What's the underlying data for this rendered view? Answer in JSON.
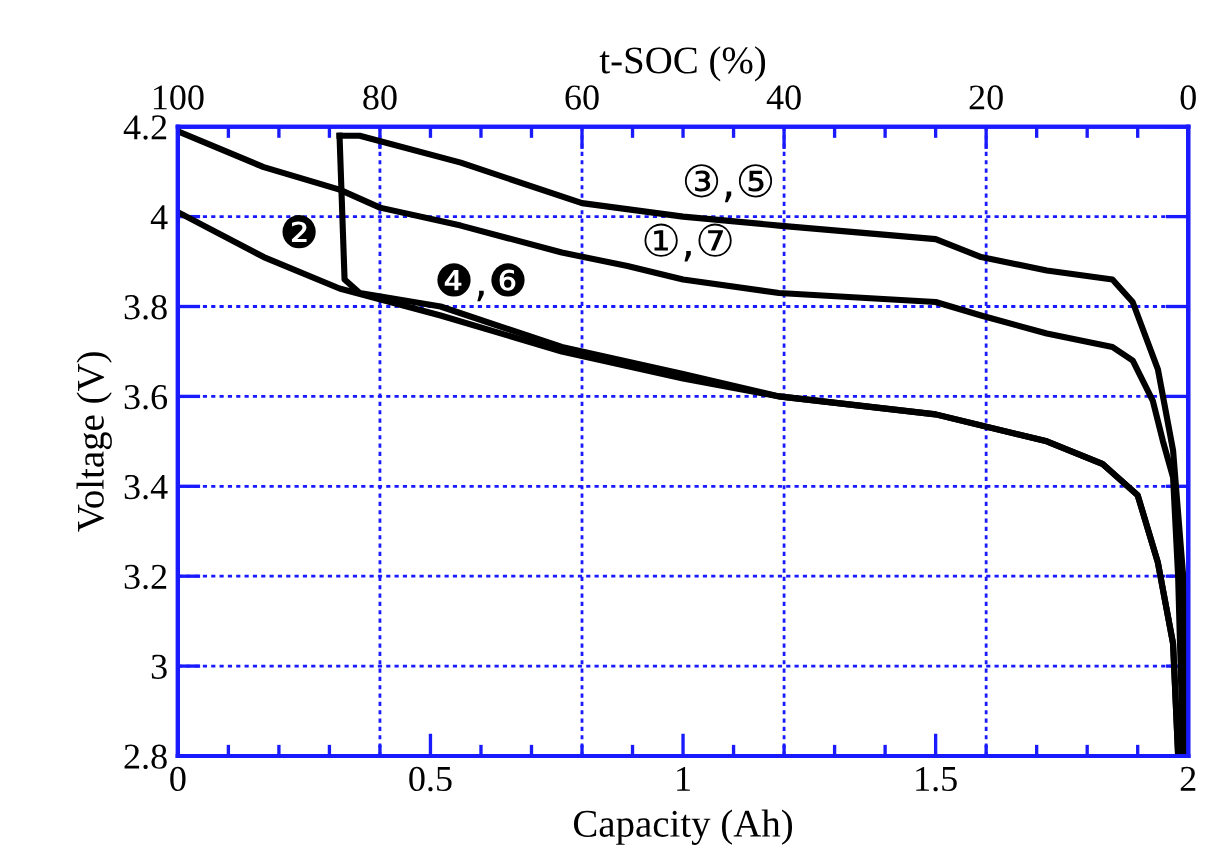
{
  "chart_data": {
    "type": "line",
    "xlabel": "Capacity (Ah)",
    "ylabel": "Voltage (V)",
    "x2label": "t-SOC (%)",
    "xlim": [
      0,
      2
    ],
    "xticks": [
      0,
      0.5,
      1,
      1.5,
      2
    ],
    "ylim": [
      2.8,
      4.2
    ],
    "yticks": [
      2.8,
      3,
      3.2,
      3.4,
      3.6,
      3.8,
      4,
      4.2
    ],
    "x2lim": [
      100,
      0
    ],
    "x2ticks": [
      100,
      80,
      60,
      40,
      20,
      0
    ],
    "grid": true,
    "line_style": "solid",
    "marker": "none",
    "legend": false,
    "series": [
      {
        "name": "①,⑦",
        "color": "#000000",
        "x": [
          0,
          0.17,
          0.32,
          0.4,
          0.56,
          0.76,
          0.89,
          1.0,
          1.19,
          1.5,
          1.59,
          1.72,
          1.85,
          1.89,
          1.93,
          1.95,
          1.97,
          1.98,
          1.99
        ],
        "values": [
          4.19,
          4.11,
          4.06,
          4.02,
          3.98,
          3.92,
          3.89,
          3.86,
          3.83,
          3.81,
          3.78,
          3.74,
          3.71,
          3.68,
          3.59,
          3.5,
          3.42,
          3.2,
          2.8
        ]
      },
      {
        "name": "③,⑤",
        "color": "#000000",
        "x": [
          0.32,
          0.36,
          0.56,
          0.8,
          1.0,
          1.19,
          1.5,
          1.59,
          1.72,
          1.85,
          1.89,
          1.94,
          1.97,
          1.99,
          2.0
        ],
        "values": [
          4.18,
          4.18,
          4.12,
          4.03,
          4.0,
          3.98,
          3.95,
          3.91,
          3.88,
          3.86,
          3.81,
          3.66,
          3.48,
          3.2,
          2.8
        ]
      },
      {
        "name": "❷",
        "color": "#000000",
        "x": [
          0,
          0.17,
          0.32,
          0.52,
          0.76,
          1.0,
          1.19,
          1.5,
          1.72,
          1.83,
          1.9,
          1.94,
          1.97,
          1.98
        ],
        "values": [
          4.01,
          3.91,
          3.84,
          3.78,
          3.7,
          3.64,
          3.6,
          3.56,
          3.5,
          3.45,
          3.38,
          3.23,
          3.05,
          2.8
        ]
      },
      {
        "name": "❹,❻",
        "color": "#000000",
        "x": [
          0.32,
          0.33,
          0.36,
          0.52,
          0.76,
          1.0,
          1.19,
          1.5,
          1.72,
          1.83,
          1.9,
          1.94,
          1.97,
          1.98
        ],
        "values": [
          4.18,
          3.86,
          3.83,
          3.8,
          3.71,
          3.65,
          3.6,
          3.56,
          3.5,
          3.45,
          3.38,
          3.23,
          3.05,
          2.8
        ]
      }
    ]
  }
}
